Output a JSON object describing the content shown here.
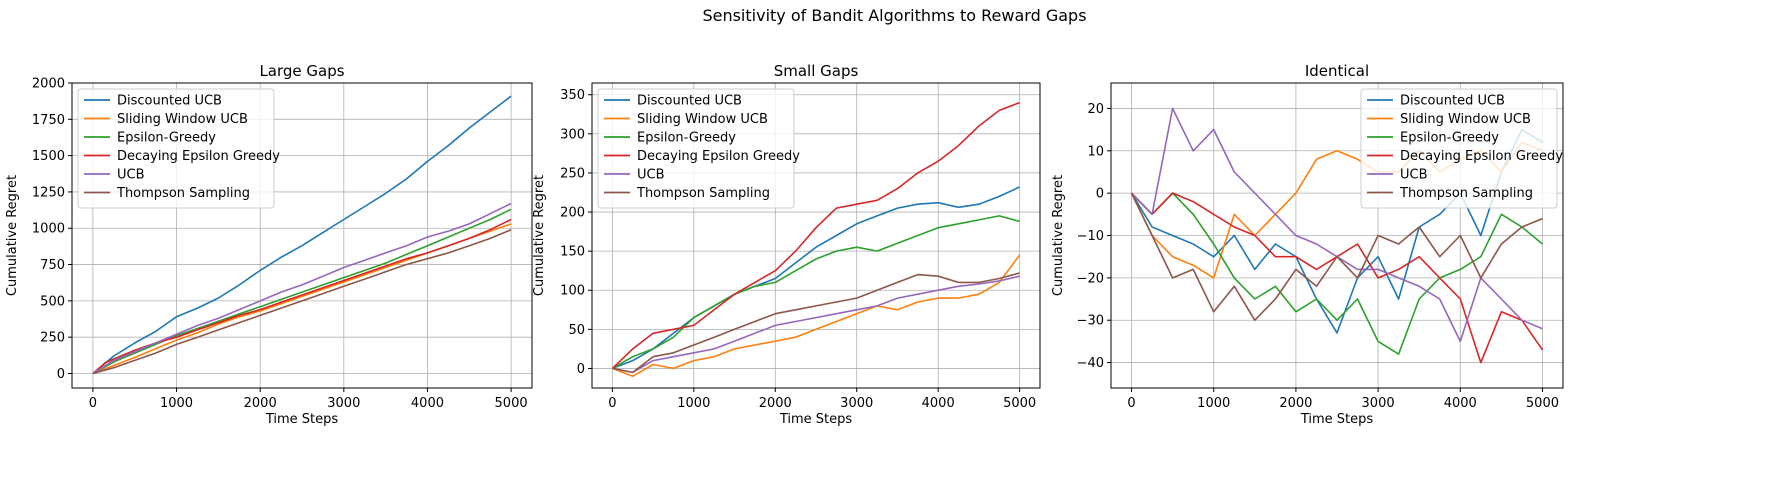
{
  "figure": {
    "title": "Sensitivity of Bandit Algorithms to Reward Gaps"
  },
  "colors": {
    "Discounted UCB": "#1f77b4",
    "Sliding Window UCB": "#ff7f0e",
    "Epsilon-Greedy": "#2ca02c",
    "Decaying Epsilon Greedy": "#d62728",
    "UCB": "#9467bd",
    "Thompson Sampling": "#8c564b"
  },
  "chart_data": [
    {
      "type": "line",
      "title": "Large Gaps",
      "xlabel": "Time Steps",
      "ylabel": "Cumulative Regret",
      "xlim": [
        -250,
        5250
      ],
      "ylim": [
        -100,
        2000
      ],
      "xticks": [
        0,
        1000,
        2000,
        3000,
        4000,
        5000
      ],
      "yticks": [
        0,
        250,
        500,
        750,
        1000,
        1250,
        1500,
        1750,
        2000
      ],
      "grid": true,
      "legend": "upper left",
      "series": [
        {
          "name": "Discounted UCB",
          "x": [
            0,
            250,
            500,
            750,
            1000,
            1250,
            1500,
            1750,
            2000,
            2250,
            2500,
            2750,
            3000,
            3250,
            3500,
            3750,
            4000,
            4250,
            4500,
            4750,
            5000
          ],
          "values": [
            0,
            120,
            210,
            290,
            390,
            450,
            520,
            610,
            710,
            800,
            880,
            970,
            1060,
            1150,
            1240,
            1340,
            1460,
            1570,
            1690,
            1800,
            1910
          ]
        },
        {
          "name": "Sliding Window UCB",
          "x": [
            0,
            250,
            500,
            750,
            1000,
            1250,
            1500,
            1750,
            2000,
            2250,
            2500,
            2750,
            3000,
            3250,
            3500,
            3750,
            4000,
            4250,
            4500,
            4750,
            5000
          ],
          "values": [
            0,
            55,
            110,
            170,
            230,
            280,
            340,
            390,
            430,
            480,
            530,
            580,
            630,
            680,
            730,
            780,
            830,
            880,
            930,
            980,
            1030
          ]
        },
        {
          "name": "Epsilon-Greedy",
          "x": [
            0,
            250,
            500,
            750,
            1000,
            1250,
            1500,
            1750,
            2000,
            2250,
            2500,
            2750,
            3000,
            3250,
            3500,
            3750,
            4000,
            4250,
            4500,
            4750,
            5000
          ],
          "values": [
            0,
            80,
            140,
            200,
            260,
            310,
            360,
            410,
            460,
            510,
            560,
            610,
            660,
            710,
            760,
            820,
            880,
            940,
            1000,
            1060,
            1130
          ]
        },
        {
          "name": "Decaying Epsilon Greedy",
          "x": [
            0,
            150,
            250,
            500,
            750,
            1000,
            1250,
            1500,
            1750,
            2000,
            2250,
            2500,
            2750,
            3000,
            3250,
            3500,
            3750,
            4000,
            4250,
            4500,
            4750,
            5000
          ],
          "values": [
            0,
            75,
            100,
            160,
            210,
            250,
            300,
            350,
            400,
            440,
            490,
            540,
            590,
            640,
            690,
            740,
            790,
            830,
            880,
            930,
            990,
            1060
          ]
        },
        {
          "name": "UCB",
          "x": [
            0,
            250,
            500,
            750,
            1000,
            1250,
            1500,
            1750,
            2000,
            2250,
            2500,
            2750,
            3000,
            3250,
            3500,
            3750,
            4000,
            4250,
            4500,
            4750,
            5000
          ],
          "values": [
            0,
            90,
            150,
            210,
            270,
            330,
            380,
            440,
            500,
            560,
            610,
            670,
            730,
            780,
            830,
            880,
            940,
            980,
            1030,
            1100,
            1170
          ]
        },
        {
          "name": "Thompson Sampling",
          "x": [
            0,
            250,
            500,
            750,
            1000,
            1250,
            1500,
            1750,
            2000,
            2250,
            2500,
            2750,
            3000,
            3250,
            3500,
            3750,
            4000,
            4250,
            4500,
            4750,
            5000
          ],
          "values": [
            0,
            40,
            90,
            140,
            200,
            250,
            300,
            350,
            400,
            450,
            500,
            550,
            600,
            650,
            700,
            750,
            790,
            830,
            880,
            930,
            990
          ]
        }
      ]
    },
    {
      "type": "line",
      "title": "Small Gaps",
      "xlabel": "Time Steps",
      "ylabel": "Cumulative Regret",
      "xlim": [
        -250,
        5250
      ],
      "ylim": [
        -25,
        365
      ],
      "xticks": [
        0,
        1000,
        2000,
        3000,
        4000,
        5000
      ],
      "yticks": [
        0,
        50,
        100,
        150,
        200,
        250,
        300,
        350
      ],
      "grid": true,
      "legend": "upper left",
      "series": [
        {
          "name": "Discounted UCB",
          "x": [
            0,
            250,
            500,
            750,
            1000,
            1250,
            1500,
            1750,
            2000,
            2250,
            2500,
            2750,
            3000,
            3250,
            3500,
            3750,
            4000,
            4250,
            4500,
            4750,
            5000
          ],
          "values": [
            0,
            10,
            25,
            45,
            65,
            80,
            95,
            105,
            115,
            135,
            155,
            170,
            185,
            195,
            205,
            210,
            212,
            206,
            210,
            220,
            232
          ]
        },
        {
          "name": "Sliding Window UCB",
          "x": [
            0,
            250,
            500,
            750,
            1000,
            1250,
            1500,
            1750,
            2000,
            2250,
            2500,
            2750,
            3000,
            3250,
            3500,
            3750,
            4000,
            4250,
            4500,
            4750,
            5000
          ],
          "values": [
            0,
            -10,
            5,
            0,
            10,
            15,
            25,
            30,
            35,
            40,
            50,
            60,
            70,
            80,
            75,
            85,
            90,
            90,
            95,
            110,
            145
          ]
        },
        {
          "name": "Epsilon-Greedy",
          "x": [
            0,
            250,
            500,
            750,
            1000,
            1250,
            1500,
            1750,
            2000,
            2250,
            2500,
            2750,
            3000,
            3250,
            3500,
            3750,
            4000,
            4250,
            4500,
            4750,
            5000
          ],
          "values": [
            0,
            15,
            25,
            40,
            65,
            80,
            95,
            105,
            110,
            125,
            140,
            150,
            155,
            150,
            160,
            170,
            180,
            185,
            190,
            195,
            188
          ]
        },
        {
          "name": "Decaying Epsilon Greedy",
          "x": [
            0,
            250,
            500,
            750,
            1000,
            1250,
            1500,
            1750,
            2000,
            2250,
            2500,
            2750,
            3000,
            3250,
            3500,
            3750,
            4000,
            4250,
            4500,
            4750,
            5000
          ],
          "values": [
            0,
            25,
            45,
            50,
            55,
            75,
            95,
            110,
            125,
            150,
            180,
            205,
            210,
            215,
            230,
            250,
            265,
            285,
            310,
            330,
            340
          ]
        },
        {
          "name": "UCB",
          "x": [
            0,
            250,
            500,
            750,
            1000,
            1250,
            1500,
            1750,
            2000,
            2250,
            2500,
            2750,
            3000,
            3250,
            3500,
            3750,
            4000,
            4250,
            4500,
            4750,
            5000
          ],
          "values": [
            0,
            -5,
            10,
            15,
            20,
            25,
            35,
            45,
            55,
            60,
            65,
            70,
            75,
            80,
            90,
            95,
            100,
            105,
            108,
            112,
            118
          ]
        },
        {
          "name": "Thompson Sampling",
          "x": [
            0,
            250,
            500,
            750,
            1000,
            1250,
            1500,
            1750,
            2000,
            2250,
            2500,
            2750,
            3000,
            3250,
            3500,
            3750,
            4000,
            4250,
            4500,
            4750,
            5000
          ],
          "values": [
            0,
            -5,
            15,
            20,
            30,
            40,
            50,
            60,
            70,
            75,
            80,
            85,
            90,
            100,
            110,
            120,
            118,
            110,
            110,
            115,
            122
          ]
        }
      ]
    },
    {
      "type": "line",
      "title": "Identical",
      "xlabel": "Time Steps",
      "ylabel": "Cumulative Regret",
      "xlim": [
        -250,
        5250
      ],
      "ylim": [
        -46,
        26
      ],
      "xticks": [
        0,
        1000,
        2000,
        3000,
        4000,
        5000
      ],
      "yticks": [
        -40,
        -30,
        -20,
        -10,
        0,
        10,
        20
      ],
      "grid": true,
      "legend": "upper right",
      "series": [
        {
          "name": "Discounted UCB",
          "x": [
            0,
            250,
            500,
            750,
            1000,
            1250,
            1500,
            1750,
            2000,
            2250,
            2500,
            2750,
            3000,
            3250,
            3500,
            3750,
            4000,
            4250,
            4500,
            4750,
            5000
          ],
          "values": [
            0,
            -8,
            -10,
            -12,
            -15,
            -10,
            -18,
            -12,
            -15,
            -25,
            -33,
            -20,
            -15,
            -25,
            -8,
            -5,
            0,
            -10,
            5,
            15,
            12
          ]
        },
        {
          "name": "Sliding Window UCB",
          "x": [
            0,
            250,
            500,
            750,
            1000,
            1250,
            1500,
            1750,
            2000,
            2250,
            2500,
            2750,
            3000,
            3250,
            3500,
            3750,
            4000,
            4250,
            4500,
            4750,
            5000
          ],
          "values": [
            0,
            -10,
            -15,
            -17,
            -20,
            -5,
            -10,
            -5,
            0,
            8,
            10,
            8,
            5,
            5,
            10,
            5,
            8,
            10,
            5,
            12,
            10
          ]
        },
        {
          "name": "Epsilon-Greedy",
          "x": [
            0,
            250,
            500,
            750,
            1000,
            1250,
            1500,
            1750,
            2000,
            2250,
            2500,
            2750,
            3000,
            3250,
            3500,
            3750,
            4000,
            4250,
            4500,
            4750,
            5000
          ],
          "values": [
            0,
            -5,
            0,
            -5,
            -12,
            -20,
            -25,
            -22,
            -28,
            -25,
            -30,
            -25,
            -35,
            -38,
            -25,
            -20,
            -18,
            -15,
            -5,
            -8,
            -12
          ]
        },
        {
          "name": "Decaying Epsilon Greedy",
          "x": [
            0,
            250,
            500,
            750,
            1000,
            1250,
            1500,
            1750,
            2000,
            2250,
            2500,
            2750,
            3000,
            3250,
            3500,
            3750,
            4000,
            4250,
            4500,
            4750,
            5000
          ],
          "values": [
            0,
            -5,
            0,
            -2,
            -5,
            -8,
            -10,
            -15,
            -15,
            -18,
            -15,
            -12,
            -20,
            -18,
            -15,
            -20,
            -25,
            -40,
            -28,
            -30,
            -37
          ]
        },
        {
          "name": "UCB",
          "x": [
            0,
            250,
            500,
            750,
            1000,
            1250,
            1500,
            1750,
            2000,
            2250,
            2500,
            2750,
            3000,
            3250,
            3500,
            3750,
            4000,
            4250,
            4500,
            4750,
            5000
          ],
          "values": [
            0,
            -5,
            20,
            10,
            15,
            5,
            0,
            -5,
            -10,
            -12,
            -15,
            -18,
            -18,
            -20,
            -22,
            -25,
            -35,
            -20,
            -25,
            -30,
            -32
          ]
        },
        {
          "name": "Thompson Sampling",
          "x": [
            0,
            250,
            500,
            750,
            1000,
            1250,
            1500,
            1750,
            2000,
            2250,
            2500,
            2750,
            3000,
            3250,
            3500,
            3750,
            4000,
            4250,
            4500,
            4750,
            5000
          ],
          "values": [
            0,
            -10,
            -20,
            -18,
            -28,
            -22,
            -30,
            -25,
            -18,
            -22,
            -15,
            -20,
            -10,
            -12,
            -8,
            -15,
            -10,
            -20,
            -12,
            -8,
            -6
          ]
        }
      ]
    }
  ]
}
